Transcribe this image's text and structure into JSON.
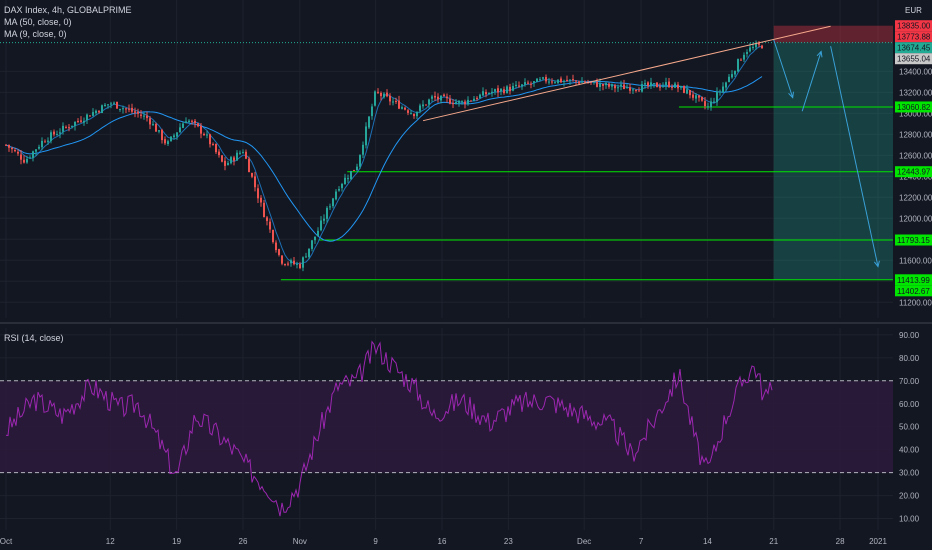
{
  "chart_data": [
    {
      "type": "candlestick",
      "title": "DAX Index, 4h, GLOBALPRIME",
      "currency": "EUR",
      "indicators": [
        "MA (50, close, 0)",
        "MA (9, close, 0)"
      ],
      "ylim": [
        11050,
        14080
      ],
      "y_ticks": [
        11200,
        11400,
        11600,
        11800,
        12000,
        12200,
        12400,
        12600,
        12800,
        13000,
        13200,
        13400
      ],
      "y_tick_labels": [
        "11200.00",
        "11400.00",
        "11600.00",
        "11800.00",
        "12000.00",
        "12200.00",
        "12400.00",
        "12600.00",
        "12800.00",
        "13000.00",
        "13200.00",
        "13400.00"
      ],
      "x_ticks": [
        {
          "label": "Oct",
          "date": "2020-10-01"
        },
        {
          "label": "12",
          "date": "2020-10-12"
        },
        {
          "label": "19",
          "date": "2020-10-19"
        },
        {
          "label": "26",
          "date": "2020-10-26"
        },
        {
          "label": "Nov",
          "date": "2020-11-01"
        },
        {
          "label": "9",
          "date": "2020-11-09"
        },
        {
          "label": "16",
          "date": "2020-11-16"
        },
        {
          "label": "23",
          "date": "2020-11-23"
        },
        {
          "label": "Dec",
          "date": "2020-12-01"
        },
        {
          "label": "7",
          "date": "2020-12-07"
        },
        {
          "label": "14",
          "date": "2020-12-14"
        },
        {
          "label": "21",
          "date": "2020-12-21"
        },
        {
          "label": "28",
          "date": "2020-12-28"
        },
        {
          "label": "2021",
          "date": "2021-01-01"
        }
      ],
      "price_path": [
        {
          "date": "2020-10-01",
          "close": 12700
        },
        {
          "date": "2020-10-03",
          "close": 12550
        },
        {
          "date": "2020-10-05",
          "close": 12750
        },
        {
          "date": "2020-10-08",
          "close": 12900
        },
        {
          "date": "2020-10-12",
          "close": 13100
        },
        {
          "date": "2020-10-14",
          "close": 13030
        },
        {
          "date": "2020-10-16",
          "close": 12950
        },
        {
          "date": "2020-10-18",
          "close": 12700
        },
        {
          "date": "2020-10-20",
          "close": 12950
        },
        {
          "date": "2020-10-22",
          "close": 12800
        },
        {
          "date": "2020-10-24",
          "close": 12500
        },
        {
          "date": "2020-10-26",
          "close": 12650
        },
        {
          "date": "2020-10-28",
          "close": 12100
        },
        {
          "date": "2020-10-30",
          "close": 11600
        },
        {
          "date": "2020-11-01",
          "close": 11550
        },
        {
          "date": "2020-11-03",
          "close": 11900
        },
        {
          "date": "2020-11-05",
          "close": 12300
        },
        {
          "date": "2020-11-07",
          "close": 12500
        },
        {
          "date": "2020-11-09",
          "close": 13200
        },
        {
          "date": "2020-11-11",
          "close": 13100
        },
        {
          "date": "2020-11-13",
          "close": 13000
        },
        {
          "date": "2020-11-15",
          "close": 13150
        },
        {
          "date": "2020-11-18",
          "close": 13100
        },
        {
          "date": "2020-11-21",
          "close": 13200
        },
        {
          "date": "2020-11-24",
          "close": 13250
        },
        {
          "date": "2020-11-27",
          "close": 13320
        },
        {
          "date": "2020-12-01",
          "close": 13300
        },
        {
          "date": "2020-12-04",
          "close": 13250
        },
        {
          "date": "2020-12-07",
          "close": 13250
        },
        {
          "date": "2020-12-10",
          "close": 13280
        },
        {
          "date": "2020-12-12",
          "close": 13200
        },
        {
          "date": "2020-12-14",
          "close": 13050
        },
        {
          "date": "2020-12-16",
          "close": 13300
        },
        {
          "date": "2020-12-18",
          "close": 13600
        },
        {
          "date": "2020-12-20",
          "close": 13655
        }
      ],
      "price_labels": [
        {
          "value": 13835.0,
          "text": "13835.00",
          "color": "#f23645"
        },
        {
          "value": 13773.88,
          "text": "13773.88",
          "color": "#f23645"
        },
        {
          "value": 13674.45,
          "text": "13674.45",
          "color": "#22ab94"
        },
        {
          "value": 13655.04,
          "text": "13655.04",
          "color": "#c9c9c9"
        },
        {
          "value": 13060.82,
          "text": "13060.82",
          "color": "#00e600"
        },
        {
          "value": 12443.97,
          "text": "12443.97",
          "color": "#00e600"
        },
        {
          "value": 11793.15,
          "text": "11793.15",
          "color": "#00e600"
        },
        {
          "value": 11413.99,
          "text": "11413.99",
          "color": "#00e600"
        },
        {
          "value": 11402.67,
          "text": "11402.67",
          "color": "#00e600"
        }
      ],
      "horizontal_levels": [
        {
          "value": 13060.82,
          "from": "2020-12-11"
        },
        {
          "value": 12443.97,
          "from": "2020-11-06"
        },
        {
          "value": 11793.15,
          "from": "2020-11-03"
        },
        {
          "value": 11413.99,
          "from": "2020-10-30"
        }
      ],
      "trendline": {
        "from": {
          "date": "2020-11-14",
          "value": 12930
        },
        "to": {
          "date": "2020-12-27",
          "value": 13830
        }
      },
      "short_position": {
        "from": "2020-12-21",
        "to": "2021-01-01",
        "entry": 13674.45,
        "stop": 13835.0,
        "target": 11413.99
      },
      "projection_arrows": [
        [
          {
            "date": "2020-12-21",
            "value": 13700
          },
          {
            "date": "2020-12-23",
            "value": 13150
          }
        ],
        [
          {
            "date": "2020-12-24",
            "value": 13020
          },
          {
            "date": "2020-12-26",
            "value": 13590
          }
        ],
        [
          {
            "date": "2020-12-27",
            "value": 13640
          },
          {
            "date": "2021-01-01",
            "value": 11540
          }
        ]
      ],
      "colors": {
        "up": "#26a69a",
        "down": "#ef5350",
        "ma": "#2196f3",
        "trendline": "#f7a98c",
        "level": "#00e600",
        "target_zone": "#22ab94",
        "stop_zone": "#f23645",
        "arrow": "#3aa0d8"
      }
    },
    {
      "type": "line",
      "title": "RSI (14, close)",
      "ylim": [
        5,
        93
      ],
      "y_ticks": [
        10,
        20,
        30,
        40,
        50,
        60,
        70,
        80,
        90
      ],
      "y_tick_labels": [
        "10.00",
        "20.00",
        "30.00",
        "40.00",
        "50.00",
        "60.00",
        "70.00",
        "80.00",
        "90.00"
      ],
      "band": [
        30,
        70
      ],
      "rsi_path": [
        {
          "date": "2020-10-01",
          "value": 48
        },
        {
          "date": "2020-10-04",
          "value": 62
        },
        {
          "date": "2020-10-07",
          "value": 55
        },
        {
          "date": "2020-10-10",
          "value": 68
        },
        {
          "date": "2020-10-13",
          "value": 58
        },
        {
          "date": "2020-10-15",
          "value": 60
        },
        {
          "date": "2020-10-17",
          "value": 45
        },
        {
          "date": "2020-10-19",
          "value": 28
        },
        {
          "date": "2020-10-21",
          "value": 55
        },
        {
          "date": "2020-10-23",
          "value": 48
        },
        {
          "date": "2020-10-25",
          "value": 40
        },
        {
          "date": "2020-10-27",
          "value": 30
        },
        {
          "date": "2020-10-29",
          "value": 22
        },
        {
          "date": "2020-10-30",
          "value": 15
        },
        {
          "date": "2020-11-01",
          "value": 25
        },
        {
          "date": "2020-11-03",
          "value": 48
        },
        {
          "date": "2020-11-05",
          "value": 68
        },
        {
          "date": "2020-11-07",
          "value": 70
        },
        {
          "date": "2020-11-09",
          "value": 85
        },
        {
          "date": "2020-11-11",
          "value": 76
        },
        {
          "date": "2020-11-13",
          "value": 68
        },
        {
          "date": "2020-11-15",
          "value": 55
        },
        {
          "date": "2020-11-18",
          "value": 62
        },
        {
          "date": "2020-11-21",
          "value": 52
        },
        {
          "date": "2020-11-24",
          "value": 60
        },
        {
          "date": "2020-11-27",
          "value": 62
        },
        {
          "date": "2020-12-01",
          "value": 55
        },
        {
          "date": "2020-12-04",
          "value": 50
        },
        {
          "date": "2020-12-06",
          "value": 38
        },
        {
          "date": "2020-12-08",
          "value": 50
        },
        {
          "date": "2020-12-11",
          "value": 73
        },
        {
          "date": "2020-12-13",
          "value": 40
        },
        {
          "date": "2020-12-14",
          "value": 30
        },
        {
          "date": "2020-12-16",
          "value": 55
        },
        {
          "date": "2020-12-18",
          "value": 72
        },
        {
          "date": "2020-12-19",
          "value": 77
        },
        {
          "date": "2020-12-20",
          "value": 63
        },
        {
          "date": "2020-12-21",
          "value": 66
        }
      ],
      "colors": {
        "line": "#9c27b0",
        "band": "#2a1a3a"
      }
    }
  ]
}
